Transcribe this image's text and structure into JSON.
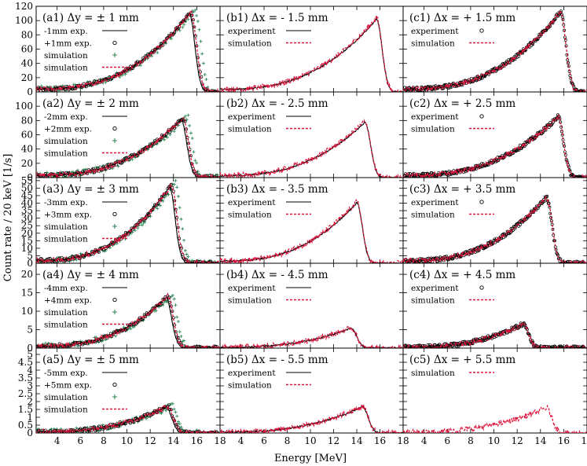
{
  "figure": {
    "ylabel": "Count rate / 20 keV [1/s]",
    "xlabel": "Energy [MeV]",
    "colors": {
      "exp": "#000000",
      "sim_red": "#dc143c",
      "sim_green": "#2e8b57"
    }
  },
  "chart_data": [
    {
      "id": "a1",
      "type": "line",
      "title": "(a1) Δy = ± 1 mm",
      "ylim": [
        0,
        120
      ],
      "yticks": [
        0,
        20,
        40,
        60,
        80,
        100,
        120
      ],
      "xlim": [
        2.2,
        18
      ],
      "xticks": [
        4,
        6,
        8,
        10,
        12,
        14,
        16,
        18
      ],
      "peak": 15.5,
      "peak_value": 112,
      "legend": [
        {
          "label": "-1mm exp.",
          "style": "line-black"
        },
        {
          "label": "+1mm exp.",
          "style": "circle-black"
        },
        {
          "label": "simulation",
          "style": "plus-green"
        },
        {
          "label": "simulation",
          "style": "dash-red"
        }
      ]
    },
    {
      "id": "b1",
      "type": "line",
      "title": "(b1) Δx = - 1.5 mm",
      "ylim": [
        0,
        120
      ],
      "yticks": [
        0,
        20,
        40,
        60,
        80,
        100,
        120
      ],
      "xlim": [
        2.2,
        18
      ],
      "xticks": [
        4,
        6,
        8,
        10,
        12,
        14,
        16,
        18
      ],
      "peak": 15.7,
      "peak_value": 104,
      "legend": [
        {
          "label": "experiment",
          "style": "line-black"
        },
        {
          "label": "simulation",
          "style": "dash-red"
        }
      ]
    },
    {
      "id": "c1",
      "type": "line",
      "title": "(c1) Δx = + 1.5 mm",
      "ylim": [
        0,
        120
      ],
      "yticks": [
        0,
        20,
        40,
        60,
        80,
        100,
        120
      ],
      "xlim": [
        2.2,
        18
      ],
      "xticks": [
        4,
        6,
        8,
        10,
        12,
        14,
        16,
        18
      ],
      "peak": 15.7,
      "peak_value": 112,
      "legend": [
        {
          "label": "experiment",
          "style": "circle-black"
        },
        {
          "label": "simulation",
          "style": "dash-red"
        }
      ]
    },
    {
      "id": "a2",
      "type": "line",
      "title": "(a2) Δy = ± 2 mm",
      "ylim": [
        0,
        120
      ],
      "yticks": [
        0,
        20,
        40,
        60,
        80,
        100
      ],
      "xlim": [
        2.2,
        18
      ],
      "xticks": [
        4,
        6,
        8,
        10,
        12,
        14,
        16,
        18
      ],
      "peak": 14.8,
      "peak_value": 83,
      "legend": [
        {
          "label": "-2mm exp.",
          "style": "line-black"
        },
        {
          "label": "+2mm exp.",
          "style": "circle-black"
        },
        {
          "label": "simulation",
          "style": "plus-green"
        },
        {
          "label": "simulation",
          "style": "dash-red"
        }
      ]
    },
    {
      "id": "b2",
      "type": "line",
      "title": "(b2) Δx = - 2.5 mm",
      "ylim": [
        0,
        120
      ],
      "yticks": [
        0,
        20,
        40,
        60,
        80,
        100
      ],
      "xlim": [
        2.2,
        18
      ],
      "xticks": [
        4,
        6,
        8,
        10,
        12,
        14,
        16,
        18
      ],
      "peak": 14.7,
      "peak_value": 79,
      "legend": [
        {
          "label": "experiment",
          "style": "line-black"
        },
        {
          "label": "simulation",
          "style": "dash-red"
        }
      ]
    },
    {
      "id": "c2",
      "type": "line",
      "title": "(c2) Δx = + 2.5 mm",
      "ylim": [
        0,
        120
      ],
      "yticks": [
        0,
        20,
        40,
        60,
        80,
        100
      ],
      "xlim": [
        2.2,
        18
      ],
      "xticks": [
        4,
        6,
        8,
        10,
        12,
        14,
        16,
        18
      ],
      "peak": 15.5,
      "peak_value": 85,
      "legend": [
        {
          "label": "experiment",
          "style": "circle-black"
        },
        {
          "label": "simulation",
          "style": "dash-red"
        }
      ]
    },
    {
      "id": "a3",
      "type": "line",
      "title": "(a3) Δy = ± 3 mm",
      "ylim": [
        0,
        57
      ],
      "yticks": [
        0,
        5,
        10,
        15,
        20,
        25,
        30,
        35,
        40,
        45,
        50,
        55
      ],
      "xlim": [
        2.2,
        18
      ],
      "xticks": [
        4,
        6,
        8,
        10,
        12,
        14,
        16,
        18
      ],
      "peak": 13.8,
      "peak_value": 52,
      "legend": [
        {
          "label": "-3mm exp.",
          "style": "line-black"
        },
        {
          "label": "+3mm exp.",
          "style": "circle-black"
        },
        {
          "label": "simulation",
          "style": "plus-green"
        },
        {
          "label": "simulation",
          "style": "dash-red"
        }
      ]
    },
    {
      "id": "b3",
      "type": "line",
      "title": "(b3) Δx = - 3.5 mm",
      "ylim": [
        0,
        57
      ],
      "yticks": [
        0,
        5,
        10,
        15,
        20,
        25,
        30,
        35,
        40,
        45,
        50,
        55
      ],
      "xlim": [
        2.2,
        18
      ],
      "xticks": [
        4,
        6,
        8,
        10,
        12,
        14,
        16,
        18
      ],
      "peak": 14.0,
      "peak_value": 41,
      "legend": [
        {
          "label": "experiment",
          "style": "line-black"
        },
        {
          "label": "simulation",
          "style": "dash-red"
        }
      ]
    },
    {
      "id": "c3",
      "type": "line",
      "title": "(c3) Δx = + 3.5 mm",
      "ylim": [
        0,
        57
      ],
      "yticks": [
        0,
        5,
        10,
        15,
        20,
        25,
        30,
        35,
        40,
        45,
        50,
        55
      ],
      "xlim": [
        2.2,
        18
      ],
      "xticks": [
        4,
        6,
        8,
        10,
        12,
        14,
        16,
        18
      ],
      "peak": 14.5,
      "peak_value": 44,
      "legend": [
        {
          "label": "experiment",
          "style": "circle-black"
        },
        {
          "label": "simulation",
          "style": "dash-red"
        }
      ]
    },
    {
      "id": "a4",
      "type": "line",
      "title": "(a4) Δy = ± 4 mm",
      "ylim": [
        0,
        23
      ],
      "yticks": [
        0,
        5,
        10,
        15,
        20
      ],
      "xlim": [
        2.2,
        18
      ],
      "xticks": [
        4,
        6,
        8,
        10,
        12,
        14,
        16,
        18
      ],
      "peak": 13.5,
      "peak_value": 14,
      "legend": [
        {
          "label": "-4mm exp.",
          "style": "line-black"
        },
        {
          "label": "+4mm exp.",
          "style": "circle-black"
        },
        {
          "label": "simulation",
          "style": "plus-green"
        },
        {
          "label": "simulation",
          "style": "dash-red"
        }
      ]
    },
    {
      "id": "b4",
      "type": "line",
      "title": "(b4) Δx = - 4.5 mm",
      "ylim": [
        0,
        23
      ],
      "yticks": [
        0,
        5,
        10,
        15,
        20
      ],
      "xlim": [
        2.2,
        18
      ],
      "xticks": [
        4,
        6,
        8,
        10,
        12,
        14,
        16,
        18
      ],
      "peak": 13.5,
      "peak_value": 5.5,
      "legend": [
        {
          "label": "experiment",
          "style": "line-black"
        },
        {
          "label": "simulation",
          "style": "dash-red"
        }
      ]
    },
    {
      "id": "c4",
      "type": "line",
      "title": "(c4) Δx = + 4.5 mm",
      "ylim": [
        0,
        23
      ],
      "yticks": [
        0,
        5,
        10,
        15,
        20
      ],
      "xlim": [
        2.2,
        18
      ],
      "xticks": [
        4,
        6,
        8,
        10,
        12,
        14,
        16,
        18
      ],
      "peak": 12.5,
      "peak_value": 6.5,
      "legend": [
        {
          "label": "experiment",
          "style": "circle-black"
        },
        {
          "label": "simulation",
          "style": "dash-red"
        }
      ]
    },
    {
      "id": "a5",
      "type": "line",
      "title": "(a5) Δy = ± 5 mm",
      "ylim": [
        0,
        5.4
      ],
      "yticks": [
        0,
        0.5,
        1,
        1.5,
        2,
        2.5,
        3,
        3.5,
        4,
        4.5,
        5
      ],
      "ytick_labels": [
        "0",
        "0.5",
        "1",
        "1.5",
        "2",
        "2.5",
        "3",
        "3.5",
        "4",
        "4.5",
        "5"
      ],
      "xlim": [
        2.2,
        18
      ],
      "xticks": [
        4,
        6,
        8,
        10,
        12,
        14,
        16,
        18
      ],
      "peak": 13.5,
      "peak_value": 1.7,
      "legend": [
        {
          "label": "-5mm exp.",
          "style": "line-black"
        },
        {
          "label": "+5mm exp.",
          "style": "circle-black"
        },
        {
          "label": "simulation",
          "style": "plus-green"
        },
        {
          "label": "simulation",
          "style": "dash-red"
        }
      ]
    },
    {
      "id": "b5",
      "type": "line",
      "title": "(b5) Δx = - 5.5 mm",
      "ylim": [
        0,
        5.4
      ],
      "yticks": [
        0,
        0.5,
        1,
        1.5,
        2,
        2.5,
        3,
        3.5,
        4,
        4.5,
        5
      ],
      "xlim": [
        2.2,
        18
      ],
      "xticks": [
        4,
        6,
        8,
        10,
        12,
        14,
        16,
        18
      ],
      "peak": 14.5,
      "peak_value": 1.7,
      "legend": [
        {
          "label": "experiment",
          "style": "line-black"
        },
        {
          "label": "simulation",
          "style": "dash-red"
        }
      ]
    },
    {
      "id": "c5",
      "type": "line",
      "title": "(c5) Δx = + 5.5 mm",
      "ylim": [
        0,
        5.4
      ],
      "yticks": [
        0,
        0.5,
        1,
        1.5,
        2,
        2.5,
        3,
        3.5,
        4,
        4.5,
        5
      ],
      "xlim": [
        2.2,
        18
      ],
      "xticks": [
        4,
        6,
        8,
        10,
        12,
        14,
        16,
        18
      ],
      "peak": 14.5,
      "peak_value": 1.6,
      "legend": [
        {
          "label": "simulation",
          "style": "dash-red"
        }
      ]
    }
  ]
}
